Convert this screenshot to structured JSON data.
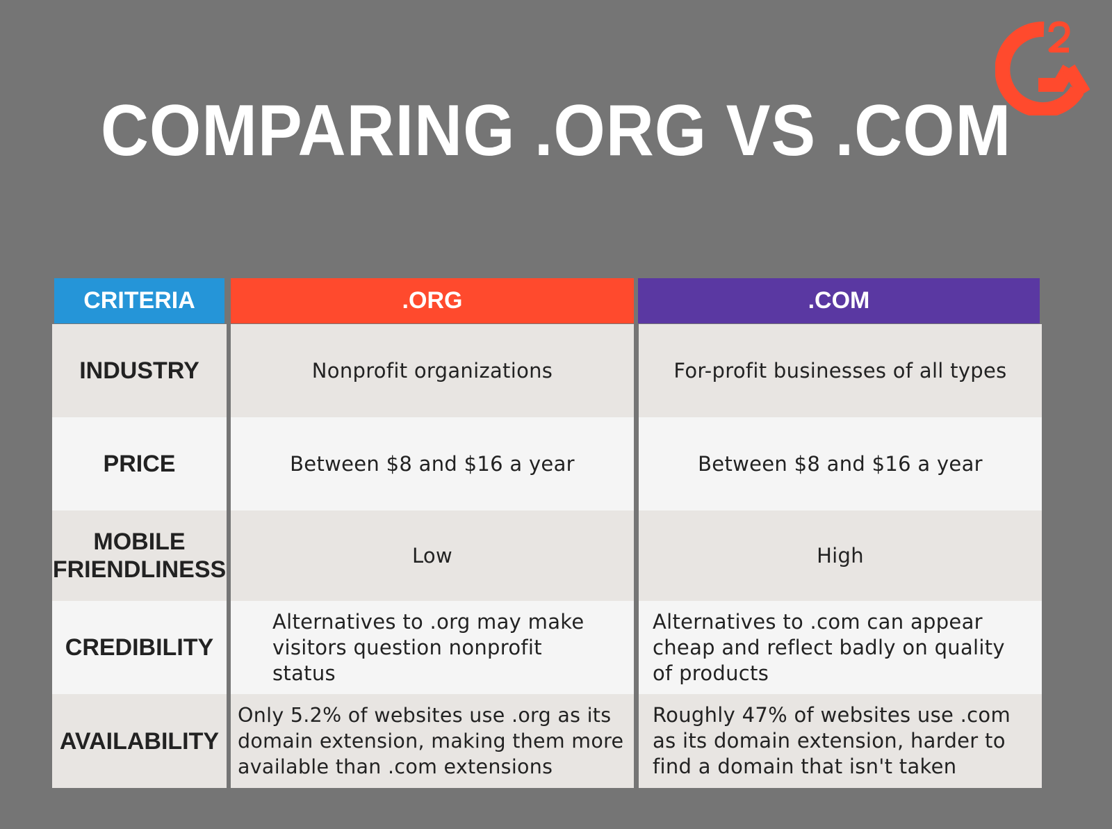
{
  "title": "COMPARING .ORG VS .COM",
  "logo": {
    "text": "G2"
  },
  "colors": {
    "background": "#757575",
    "criteria_header": "#2595d8",
    "org_header": "#ff4a2d",
    "com_header": "#5a38a2",
    "row_shade": "#e8e5e2",
    "row_light": "#f5f5f5"
  },
  "table": {
    "headers": {
      "criteria": "CRITERIA",
      "org": ".ORG",
      "com": ".COM"
    },
    "rows": [
      {
        "criteria": "INDUSTRY",
        "org": "Nonprofit organizations",
        "com": "For-profit businesses of all types"
      },
      {
        "criteria": "PRICE",
        "org": "Between $8 and $16 a year",
        "com": "Between $8 and $16 a year"
      },
      {
        "criteria": "MOBILE FRIENDLINESS",
        "org": "Low",
        "com": "High"
      },
      {
        "criteria": "CREDIBILITY",
        "org": "Alternatives to .org may make visitors question nonprofit status",
        "com": "Alternatives to .com can appear cheap and reflect badly on quality of products"
      },
      {
        "criteria": "AVAILABILITY",
        "org": "Only 5.2% of websites use .org as its domain extension, making them more available than .com extensions",
        "com": "Roughly 47% of websites use .com as its domain extension, harder to find a domain that isn't taken"
      }
    ]
  }
}
